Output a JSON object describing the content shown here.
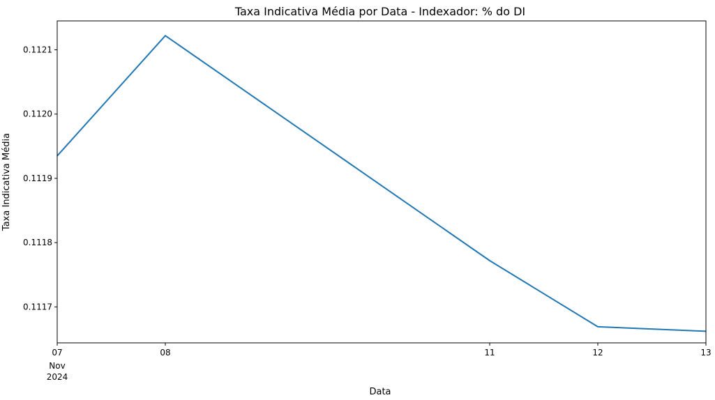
{
  "chart_data": {
    "type": "line",
    "title": "Taxa Indicativa Média por Data - Indexador: % do DI",
    "xlabel": "Data",
    "ylabel": "Taxa Indicativa Média",
    "x": [
      "2024-11-07",
      "2024-11-08",
      "2024-11-11",
      "2024-11-12",
      "2024-11-13"
    ],
    "x_tick_labels": [
      "07",
      "08",
      "11",
      "12",
      "13"
    ],
    "x_tick_sublabel": [
      "Nov",
      "2024"
    ],
    "series": [
      {
        "color": "#1f77b4",
        "values": [
          0.111935,
          0.112122,
          0.111772,
          0.111669,
          0.111662
        ]
      }
    ],
    "y_ticks": [
      0.1117,
      0.1118,
      0.1119,
      0.112,
      0.1121
    ],
    "y_tick_labels": [
      "0.1117",
      "0.1118",
      "0.1119",
      "0.1120",
      "0.1121"
    ],
    "ylim": [
      0.111644,
      0.112145
    ],
    "grid": false,
    "legend": "none"
  }
}
